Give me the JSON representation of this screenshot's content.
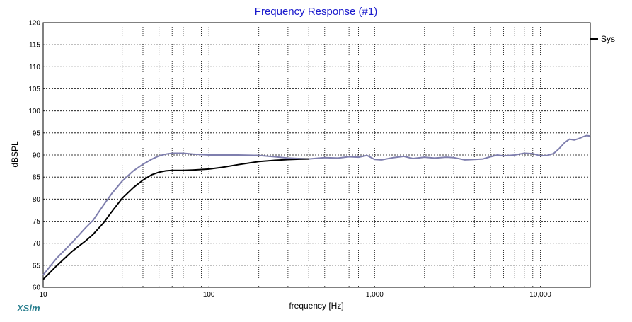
{
  "window": {
    "brand": "XSim"
  },
  "chart_data": {
    "type": "line",
    "title": "Frequency Response (#1)",
    "xlabel": "frequency [Hz]",
    "ylabel": "dBSPL",
    "x_scale": "log",
    "xlim": [
      10,
      20000
    ],
    "ylim": [
      60,
      120
    ],
    "grid": true,
    "legend_position": "top-right",
    "x_ticks": [
      10,
      100,
      1000,
      10000
    ],
    "x_tick_labels": [
      "10",
      "100",
      "1,000",
      "10,000"
    ],
    "y_ticks": [
      60,
      65,
      70,
      75,
      80,
      85,
      90,
      95,
      100,
      105,
      110,
      115,
      120
    ],
    "y_tick_labels": [
      "60",
      "65",
      "70",
      "75",
      "80",
      "85",
      "90",
      "95",
      "100",
      "105",
      "110",
      "115",
      "120"
    ],
    "colors": {
      "Sys": "#000000",
      "reference": "#7f7fae",
      "title": "#1a1acc",
      "brand": "#2a7f8f"
    },
    "series": [
      {
        "name": "Sys",
        "x": [
          10,
          12,
          15,
          18,
          20,
          23,
          26,
          30,
          35,
          40,
          45,
          50,
          55,
          60,
          70,
          80,
          100,
          120,
          150,
          200,
          250,
          300,
          350,
          400
        ],
        "y": [
          61.8,
          64.8,
          68.2,
          70.5,
          72,
          74.5,
          77.2,
          80.2,
          82.6,
          84.3,
          85.5,
          86.1,
          86.4,
          86.5,
          86.5,
          86.6,
          86.8,
          87.2,
          87.8,
          88.5,
          88.8,
          88.95,
          89.05,
          89.1
        ]
      },
      {
        "name": "",
        "x": [
          10,
          12,
          15,
          18,
          20,
          23,
          26,
          30,
          35,
          40,
          45,
          50,
          55,
          60,
          70,
          80,
          100,
          150,
          200,
          250,
          300,
          400,
          500,
          600,
          700,
          800,
          900,
          1000,
          1100,
          1300,
          1500,
          1700,
          2000,
          2300,
          2700,
          3000,
          3500,
          4000,
          4500,
          5000,
          5500,
          6000,
          7000,
          8000,
          9000,
          10000,
          11000,
          12000,
          13000,
          14000,
          15000,
          16000,
          17000,
          18000,
          19000,
          20000
        ],
        "y": [
          62.8,
          66.5,
          70.2,
          73.5,
          75.2,
          78.5,
          81.3,
          84.1,
          86.4,
          87.9,
          89,
          89.8,
          90.2,
          90.4,
          90.4,
          90.2,
          90.0,
          90.0,
          89.9,
          89.6,
          89.3,
          89.1,
          89.4,
          89.3,
          89.6,
          89.5,
          89.9,
          89.0,
          88.9,
          89.4,
          89.7,
          89.2,
          89.5,
          89.3,
          89.5,
          89.4,
          88.9,
          89.0,
          89.1,
          89.6,
          90.0,
          89.8,
          90.0,
          90.4,
          90.3,
          89.8,
          89.9,
          90.3,
          91.5,
          92.8,
          93.6,
          93.4,
          93.7,
          94.1,
          94.4,
          94.3
        ]
      }
    ]
  }
}
